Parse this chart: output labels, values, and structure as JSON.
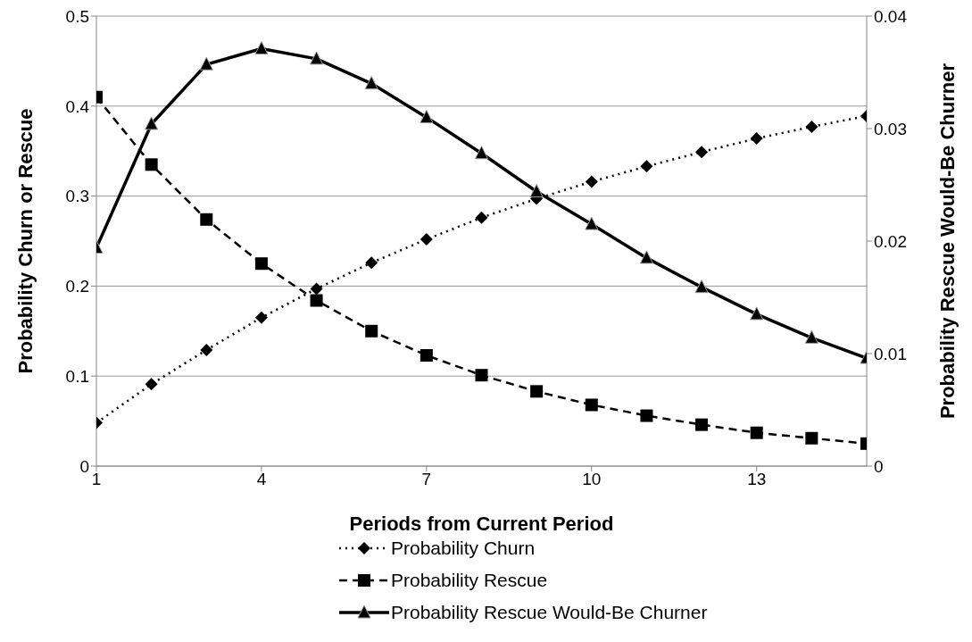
{
  "chart_data": {
    "type": "line",
    "xlabel": "Periods from Current Period",
    "ylabel": "Probability Churn or Rescue",
    "y2label": "Probability Rescue Would-Be Churner",
    "x": [
      1,
      2,
      3,
      4,
      5,
      6,
      7,
      8,
      9,
      10,
      11,
      12,
      13,
      14,
      15
    ],
    "series": [
      {
        "name": "Probability Churn",
        "color": "#000000",
        "marker": "diamond",
        "line_style": "dotted",
        "values": [
          0.048,
          0.091,
          0.129,
          0.165,
          0.197,
          0.226,
          0.252,
          0.276,
          0.297,
          0.316,
          0.333,
          0.349,
          0.364,
          0.377,
          0.389
        ]
      },
      {
        "name": "Probability Rescue",
        "color": "#000000",
        "marker": "square",
        "line_style": "dashed",
        "values": [
          0.41,
          0.335,
          0.274,
          0.225,
          0.184,
          0.15,
          0.123,
          0.101,
          0.083,
          0.068,
          0.056,
          0.046,
          0.037,
          0.031,
          0.025
        ]
      },
      {
        "name": "Probability Rescue Would-Be Churner",
        "color": "#000000",
        "marker": "triangle",
        "line_style": "solid",
        "axis": "y2",
        "values": [
          0.0194,
          0.0304,
          0.0357,
          0.0371,
          0.0362,
          0.034,
          0.031,
          0.0278,
          0.0244,
          0.0215,
          0.0185,
          0.0159,
          0.0135,
          0.0114,
          0.0096
        ]
      }
    ],
    "xlim": [
      1,
      15
    ],
    "xticks": [
      1,
      4,
      7,
      10,
      13
    ],
    "ylim": [
      0,
      0.5
    ],
    "yticks": [
      0,
      0.1,
      0.2,
      0.3,
      0.4,
      0.5
    ],
    "y2lim": [
      0,
      0.04
    ],
    "y2ticks": [
      0,
      0.01,
      0.02,
      0.03,
      0.04
    ],
    "grid": "y",
    "legend": "bottom"
  }
}
